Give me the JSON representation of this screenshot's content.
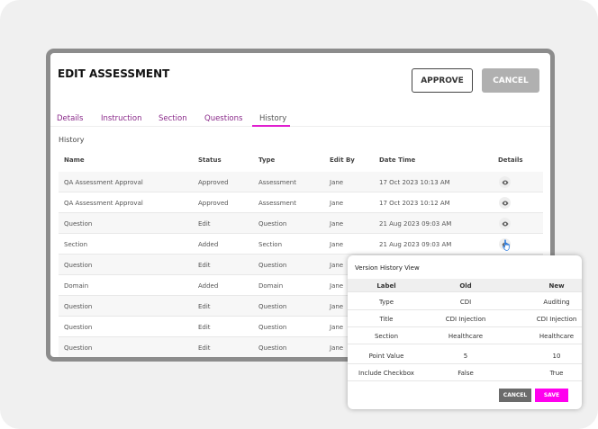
{
  "header": {
    "title": "EDIT ASSESSMENT",
    "approve_label": "APPROVE",
    "cancel_label": "CANCEL"
  },
  "tabs": [
    {
      "label": "Details"
    },
    {
      "label": "Instruction"
    },
    {
      "label": "Section"
    },
    {
      "label": "Questions"
    },
    {
      "label": "History",
      "active": true
    }
  ],
  "section_title": "History",
  "table": {
    "columns": [
      "Name",
      "Status",
      "Type",
      "Edit By",
      "Date Time",
      "Details"
    ],
    "rows": [
      {
        "name": "QA Assessment Approval",
        "status": "Approved",
        "type": "Assessment",
        "edit_by": "Jane",
        "date": "17 Oct 2023 10:13 AM"
      },
      {
        "name": "QA Assessment Approval",
        "status": "Approved",
        "type": "Assessment",
        "edit_by": "Jane",
        "date": "17 Oct 2023 10:12 AM"
      },
      {
        "name": "Question",
        "status": "Edit",
        "type": "Question",
        "edit_by": "Jane",
        "date": "21 Aug 2023 09:03 AM"
      },
      {
        "name": "Section",
        "status": "Added",
        "type": "Section",
        "edit_by": "Jane",
        "date": "21 Aug 2023 09:03 AM"
      },
      {
        "name": "Question",
        "status": "Edit",
        "type": "Question",
        "edit_by": "Jane",
        "date": ""
      },
      {
        "name": "Domain",
        "status": "Added",
        "type": "Domain",
        "edit_by": "Jane",
        "date": ""
      },
      {
        "name": "Question",
        "status": "Edit",
        "type": "Question",
        "edit_by": "Jane",
        "date": ""
      },
      {
        "name": "Question",
        "status": "Edit",
        "type": "Question",
        "edit_by": "Jane",
        "date": ""
      },
      {
        "name": "Question",
        "status": "Edit",
        "type": "Question",
        "edit_by": "Jane",
        "date": ""
      }
    ]
  },
  "popup": {
    "title": "Version History View",
    "columns": [
      "Label",
      "Old",
      "New"
    ],
    "rows": [
      [
        "Type",
        "CDI",
        "Auditing"
      ],
      [
        "Title",
        "CDI Injection",
        "CDI Injection"
      ],
      [
        "Section",
        "Healthcare",
        "Healthcare"
      ],
      [
        "Point Value",
        "5",
        "10"
      ],
      [
        "Include Checkbox",
        "False",
        "True"
      ]
    ],
    "cancel_label": "CANCEL",
    "save_label": "SAVE"
  },
  "colors": {
    "accent": "#e020d0",
    "tab_text": "#8a2a8a",
    "save": "#ff00ee",
    "cancel_popup": "#6b6b6b"
  },
  "icons": {
    "details": "eye-icon",
    "cursor": "hand-pointer-icon"
  }
}
